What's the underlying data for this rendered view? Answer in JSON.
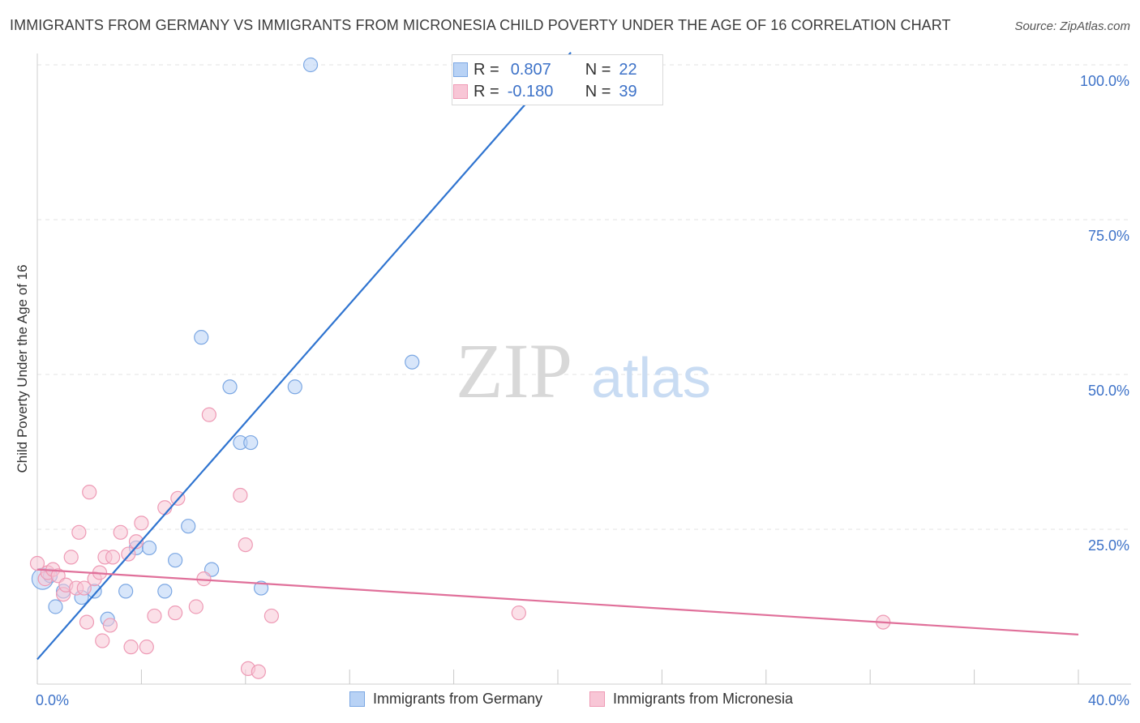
{
  "header": {
    "title": "IMMIGRANTS FROM GERMANY VS IMMIGRANTS FROM MICRONESIA CHILD POVERTY UNDER THE AGE OF 16 CORRELATION CHART",
    "source": "Source: ZipAtlas.com"
  },
  "watermark": {
    "zip": "ZIP",
    "atlas": "atlas"
  },
  "legend_top": {
    "rows": [
      {
        "r_label": "R =",
        "r_value": "0.807",
        "n_label": "N =",
        "n_value": "22"
      },
      {
        "r_label": "R =",
        "r_value": "-0.180",
        "n_label": "N =",
        "n_value": "39"
      }
    ]
  },
  "legend_bottom": {
    "germany": "Immigrants from Germany",
    "micronesia": "Immigrants from Micronesia"
  },
  "colors": {
    "germany_fill": "#b8d2f5",
    "germany_stroke": "#7ba7e3",
    "germany_line": "#2f74d0",
    "micronesia_fill": "#f8c6d6",
    "micronesia_stroke": "#ee9ab5",
    "micronesia_line": "#e0709a",
    "axis_value": "#3d72c8",
    "grid": "#e3e3e3"
  },
  "chart_data": {
    "type": "scatter",
    "title": "IMMIGRANTS FROM GERMANY VS IMMIGRANTS FROM MICRONESIA CHILD POVERTY UNDER THE AGE OF 16 CORRELATION CHART",
    "xlabel": "",
    "ylabel": "Child Poverty Under the Age of 16",
    "xlim": [
      0,
      40
    ],
    "ylim": [
      0,
      102
    ],
    "x_tick_labels": [
      {
        "value": 0,
        "label": "0.0%"
      },
      {
        "value": 40,
        "label": "40.0%"
      }
    ],
    "y_tick_labels": [
      {
        "value": 25,
        "label": "25.0%"
      },
      {
        "value": 50,
        "label": "50.0%"
      },
      {
        "value": 75,
        "label": "75.0%"
      },
      {
        "value": 100,
        "label": "100.0%"
      }
    ],
    "grid": true,
    "legend_position": "bottom",
    "series": [
      {
        "name": "Immigrants from Germany",
        "R": 0.807,
        "N": 22,
        "points": [
          [
            0.2,
            17.0
          ],
          [
            0.5,
            17.5
          ],
          [
            0.7,
            12.5
          ],
          [
            1.0,
            15.0
          ],
          [
            1.7,
            14.0
          ],
          [
            2.2,
            15.0
          ],
          [
            2.7,
            10.5
          ],
          [
            3.4,
            15.0
          ],
          [
            3.8,
            22.0
          ],
          [
            4.3,
            22.0
          ],
          [
            4.9,
            15.0
          ],
          [
            5.3,
            20.0
          ],
          [
            5.8,
            25.5
          ],
          [
            6.3,
            56.0
          ],
          [
            6.7,
            18.5
          ],
          [
            7.4,
            48.0
          ],
          [
            7.8,
            39.0
          ],
          [
            8.2,
            39.0
          ],
          [
            8.6,
            15.5
          ],
          [
            9.9,
            48.0
          ],
          [
            10.5,
            100.0
          ],
          [
            14.4,
            52.0
          ]
        ],
        "trendline": {
          "x": [
            0,
            20.5
          ],
          "y": [
            4,
            102
          ]
        }
      },
      {
        "name": "Immigrants from Micronesia",
        "R": -0.18,
        "N": 39,
        "points": [
          [
            0.0,
            19.5
          ],
          [
            0.3,
            17.0
          ],
          [
            0.4,
            18.0
          ],
          [
            0.6,
            18.5
          ],
          [
            0.8,
            17.5
          ],
          [
            1.0,
            14.5
          ],
          [
            1.1,
            16.0
          ],
          [
            1.3,
            20.5
          ],
          [
            1.5,
            15.5
          ],
          [
            1.6,
            24.5
          ],
          [
            1.8,
            15.5
          ],
          [
            1.9,
            10.0
          ],
          [
            2.0,
            31.0
          ],
          [
            2.2,
            17.0
          ],
          [
            2.4,
            18.0
          ],
          [
            2.5,
            7.0
          ],
          [
            2.6,
            20.5
          ],
          [
            2.8,
            9.5
          ],
          [
            2.9,
            20.5
          ],
          [
            3.2,
            24.5
          ],
          [
            3.5,
            21.0
          ],
          [
            3.6,
            6.0
          ],
          [
            3.8,
            23.0
          ],
          [
            4.0,
            26.0
          ],
          [
            4.2,
            6.0
          ],
          [
            4.5,
            11.0
          ],
          [
            4.9,
            28.5
          ],
          [
            5.3,
            11.5
          ],
          [
            5.4,
            30.0
          ],
          [
            6.1,
            12.5
          ],
          [
            6.4,
            17.0
          ],
          [
            6.6,
            43.5
          ],
          [
            7.8,
            30.5
          ],
          [
            8.0,
            22.5
          ],
          [
            8.1,
            2.5
          ],
          [
            8.5,
            2.0
          ],
          [
            9.0,
            11.0
          ],
          [
            18.5,
            11.5
          ],
          [
            32.5,
            10.0
          ]
        ],
        "trendline": {
          "x": [
            0,
            40
          ],
          "y": [
            18.5,
            8.0
          ]
        }
      }
    ]
  }
}
